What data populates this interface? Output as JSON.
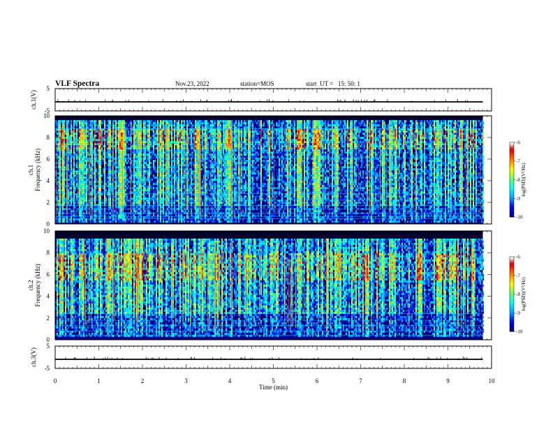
{
  "header": {
    "title": "VLF Spectra",
    "date": "Nov.23, 2022",
    "station": "station=MOS",
    "start": "start  UT =   15: 50: 1"
  },
  "colors": {
    "background": "#ffffff",
    "axes": "#000000",
    "colormap": [
      "#00007f",
      "#0000ff",
      "#00a0ff",
      "#00ffff",
      "#66ff66",
      "#ffff00",
      "#ff8800",
      "#ff0000",
      "#cc0000",
      "#ffffff"
    ]
  },
  "chart_data": [
    {
      "type": "line",
      "name": "ch1-waveform",
      "ylabel": "ch.1(V)",
      "ylim": [
        -5,
        5
      ],
      "yticklabels": [
        "5",
        "-5"
      ],
      "xlim": [
        0,
        10
      ],
      "trace_level": 0
    },
    {
      "type": "heatmap",
      "name": "ch1-spectrogram",
      "ylabel": "Frequency (kHz)",
      "channel_label": "ch.1",
      "ylim": [
        0,
        10
      ],
      "yticks": [
        0,
        2,
        4,
        6,
        8,
        10
      ],
      "xlim": [
        0,
        10
      ],
      "data_end_min": 9.8,
      "colorbar": {
        "label": "log(PSD)(V²/Hz)",
        "range": [
          -10,
          -6
        ],
        "ticks": [
          -10,
          -9,
          -8,
          -7,
          -6
        ],
        "ticklabels": [
          "-10",
          "-9",
          "-8",
          "-7",
          "-6"
        ]
      },
      "emission_band_khz": [
        0.3,
        9.6
      ],
      "strongest_band_khz": [
        7,
        9
      ],
      "horizontal_lines_khz": [
        0.5,
        0.7,
        1.0,
        1.4,
        1.7,
        2.2,
        2.8,
        6.1,
        8.8
      ]
    },
    {
      "type": "heatmap",
      "name": "ch2-spectrogram",
      "ylabel": "Frequency (kHz)",
      "channel_label": "ch.2",
      "ylim": [
        0,
        10
      ],
      "yticks": [
        0,
        2,
        4,
        6,
        8,
        10
      ],
      "xlim": [
        0,
        10
      ],
      "data_end_min": 9.8,
      "colorbar": {
        "label": "log(PSD)(V²/Hz)",
        "range": [
          -10,
          -6
        ],
        "ticks": [
          -10,
          -9,
          -8,
          -7,
          -6
        ],
        "ticklabels": [
          "-10",
          "-9",
          "-8",
          "-7",
          "-6"
        ]
      },
      "emission_band_khz": [
        0.3,
        9.3
      ],
      "strongest_band_khz": [
        5.5,
        8
      ],
      "horizontal_lines_khz": [
        0.4,
        0.8,
        1.3,
        1.8,
        2.4
      ]
    },
    {
      "type": "line",
      "name": "ch3-waveform",
      "ylabel": "ch.3(V)",
      "ylim": [
        -5,
        5
      ],
      "yticklabels": [
        "5",
        "-5"
      ],
      "xlim": [
        0,
        10
      ],
      "trace_level": 0,
      "xlabel": "Time (min)",
      "xticks": [
        0,
        1,
        2,
        3,
        4,
        5,
        6,
        7,
        8,
        9,
        10
      ],
      "xticklabels": [
        "0",
        "1",
        "2",
        "3",
        "4",
        "5",
        "6",
        "7",
        "8",
        "9",
        "10"
      ]
    }
  ]
}
